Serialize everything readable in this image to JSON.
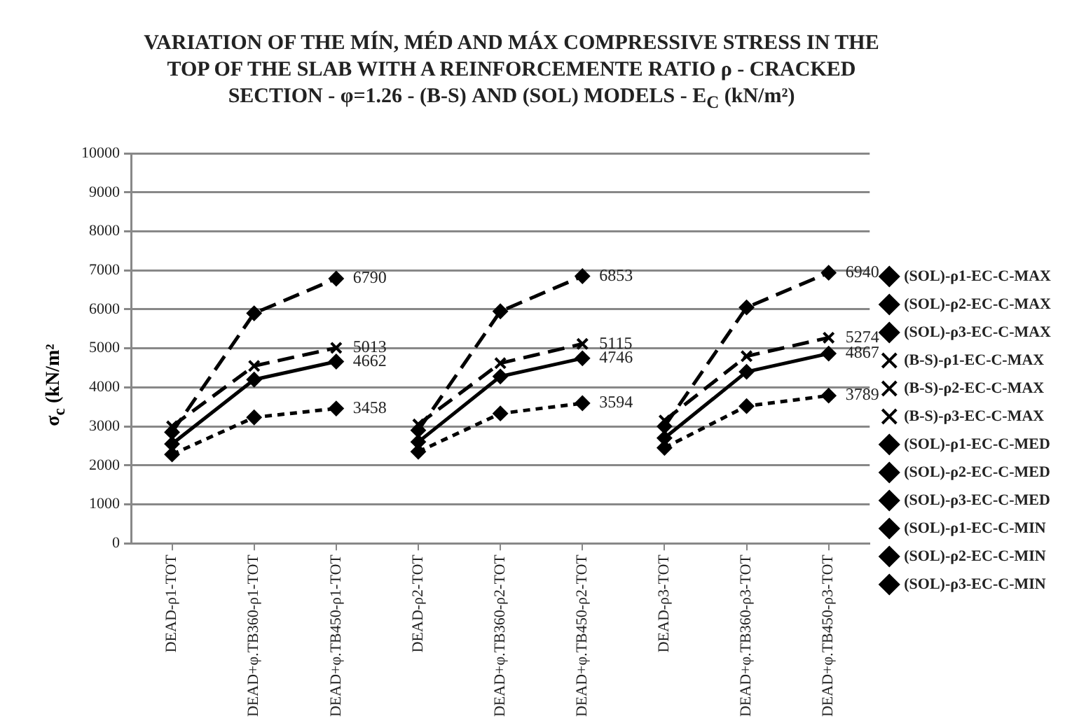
{
  "chart_data": {
    "type": "line",
    "title": "VARIATION OF THE MÍN, MÉD AND MÁX  COMPRESSIVE STRESS IN THE TOP OF THE SLAB WITH A REINFORCEMENTE RATIO  ρ -  CRACKED SECTION - φ=1.26 - (B-S) AND (SOL) MODELS - E$_{C}$ (kN/m²)",
    "ylabel": "σ$_{c}$ (kN/m²",
    "categories": [
      "DEAD-ρ1-TOT",
      "DEAD+φ.TB360-ρ1-TOT",
      "DEAD+φ.TB450-ρ1-TOT",
      "DEAD-ρ2-TOT",
      "DEAD+φ.TB360-ρ2-TOT",
      "DEAD+φ.TB450-ρ2-TOT",
      "DEAD-ρ3-TOT",
      "DEAD+φ.TB360-ρ3-TOT",
      "DEAD+φ.TB450-ρ3-TOT"
    ],
    "ylim": [
      0,
      10000
    ],
    "yticks": [
      0,
      1000,
      2000,
      3000,
      4000,
      5000,
      6000,
      7000,
      8000,
      9000,
      10000
    ],
    "grid": "y",
    "legend": "right",
    "series": [
      {
        "name": "(SOL)-ρ1-EC-C-MAX",
        "color": "#000000",
        "marker": "diamond",
        "line_style": "dashed",
        "values": [
          2850,
          5900,
          6790,
          null,
          null,
          null,
          null,
          null,
          null
        ],
        "value_labels": [
          null,
          null,
          "6790",
          null,
          null,
          null,
          null,
          null,
          null
        ]
      },
      {
        "name": "(SOL)-ρ2-EC-C-MAX",
        "color": "#000000",
        "marker": "diamond",
        "line_style": "dashed",
        "values": [
          null,
          null,
          null,
          2900,
          5950,
          6853,
          null,
          null,
          null
        ],
        "value_labels": [
          null,
          null,
          null,
          null,
          null,
          "6853",
          null,
          null,
          null
        ]
      },
      {
        "name": "(SOL)-ρ3-EC-C-MAX",
        "color": "#000000",
        "marker": "diamond",
        "line_style": "dashed",
        "values": [
          null,
          null,
          null,
          null,
          null,
          null,
          3000,
          6050,
          6940
        ],
        "value_labels": [
          null,
          null,
          null,
          null,
          null,
          null,
          null,
          null,
          "6940"
        ]
      },
      {
        "name": "(B-S)-ρ1-EC-C-MAX",
        "color": "#000000",
        "marker": "cross",
        "line_style": "dashed",
        "values": [
          3000,
          4550,
          5013,
          null,
          null,
          null,
          null,
          null,
          null
        ],
        "value_labels": [
          null,
          null,
          "5013",
          null,
          null,
          null,
          null,
          null,
          null
        ]
      },
      {
        "name": "(B-S)-ρ2-EC-C-MAX",
        "color": "#000000",
        "marker": "cross",
        "line_style": "dashed",
        "values": [
          null,
          null,
          null,
          3050,
          4620,
          5115,
          null,
          null,
          null
        ],
        "value_labels": [
          null,
          null,
          null,
          null,
          null,
          "5115",
          null,
          null,
          null
        ]
      },
      {
        "name": "(B-S)-ρ3-EC-C-MAX",
        "color": "#000000",
        "marker": "cross",
        "line_style": "dashed",
        "values": [
          null,
          null,
          null,
          null,
          null,
          null,
          3150,
          4800,
          5274
        ],
        "value_labels": [
          null,
          null,
          null,
          null,
          null,
          null,
          null,
          null,
          "5274"
        ]
      },
      {
        "name": "(SOL)-ρ1-EC-C-MED",
        "color": "#000000",
        "marker": "diamond",
        "line_style": "solid",
        "values": [
          2550,
          4200,
          4662,
          null,
          null,
          null,
          null,
          null,
          null
        ],
        "value_labels": [
          null,
          null,
          "4662",
          null,
          null,
          null,
          null,
          null,
          null
        ]
      },
      {
        "name": "(SOL)-ρ2-EC-C-MED",
        "color": "#000000",
        "marker": "diamond",
        "line_style": "solid",
        "values": [
          null,
          null,
          null,
          2600,
          4280,
          4746,
          null,
          null,
          null
        ],
        "value_labels": [
          null,
          null,
          null,
          null,
          null,
          "4746",
          null,
          null,
          null
        ]
      },
      {
        "name": "(SOL)-ρ3-EC-C-MED",
        "color": "#000000",
        "marker": "diamond",
        "line_style": "solid",
        "values": [
          null,
          null,
          null,
          null,
          null,
          null,
          2700,
          4400,
          4867
        ],
        "value_labels": [
          null,
          null,
          null,
          null,
          null,
          null,
          null,
          null,
          "4867"
        ]
      },
      {
        "name": "(SOL)-ρ1-EC-C-MIN",
        "color": "#000000",
        "marker": "diamond",
        "line_style": "dotted",
        "values": [
          2280,
          3230,
          3458,
          null,
          null,
          null,
          null,
          null,
          null
        ],
        "value_labels": [
          null,
          null,
          "3458",
          null,
          null,
          null,
          null,
          null,
          null
        ]
      },
      {
        "name": "(SOL)-ρ2-EC-C-MIN",
        "color": "#000000",
        "marker": "diamond",
        "line_style": "dotted",
        "values": [
          null,
          null,
          null,
          2350,
          3330,
          3594,
          null,
          null,
          null
        ],
        "value_labels": [
          null,
          null,
          null,
          null,
          null,
          "3594",
          null,
          null,
          null
        ]
      },
      {
        "name": "(SOL)-ρ3-EC-C-MIN",
        "color": "#000000",
        "marker": "diamond",
        "line_style": "dotted",
        "values": [
          null,
          null,
          null,
          null,
          null,
          null,
          2450,
          3520,
          3789
        ],
        "value_labels": [
          null,
          null,
          null,
          null,
          null,
          null,
          null,
          null,
          "3789"
        ]
      }
    ]
  }
}
